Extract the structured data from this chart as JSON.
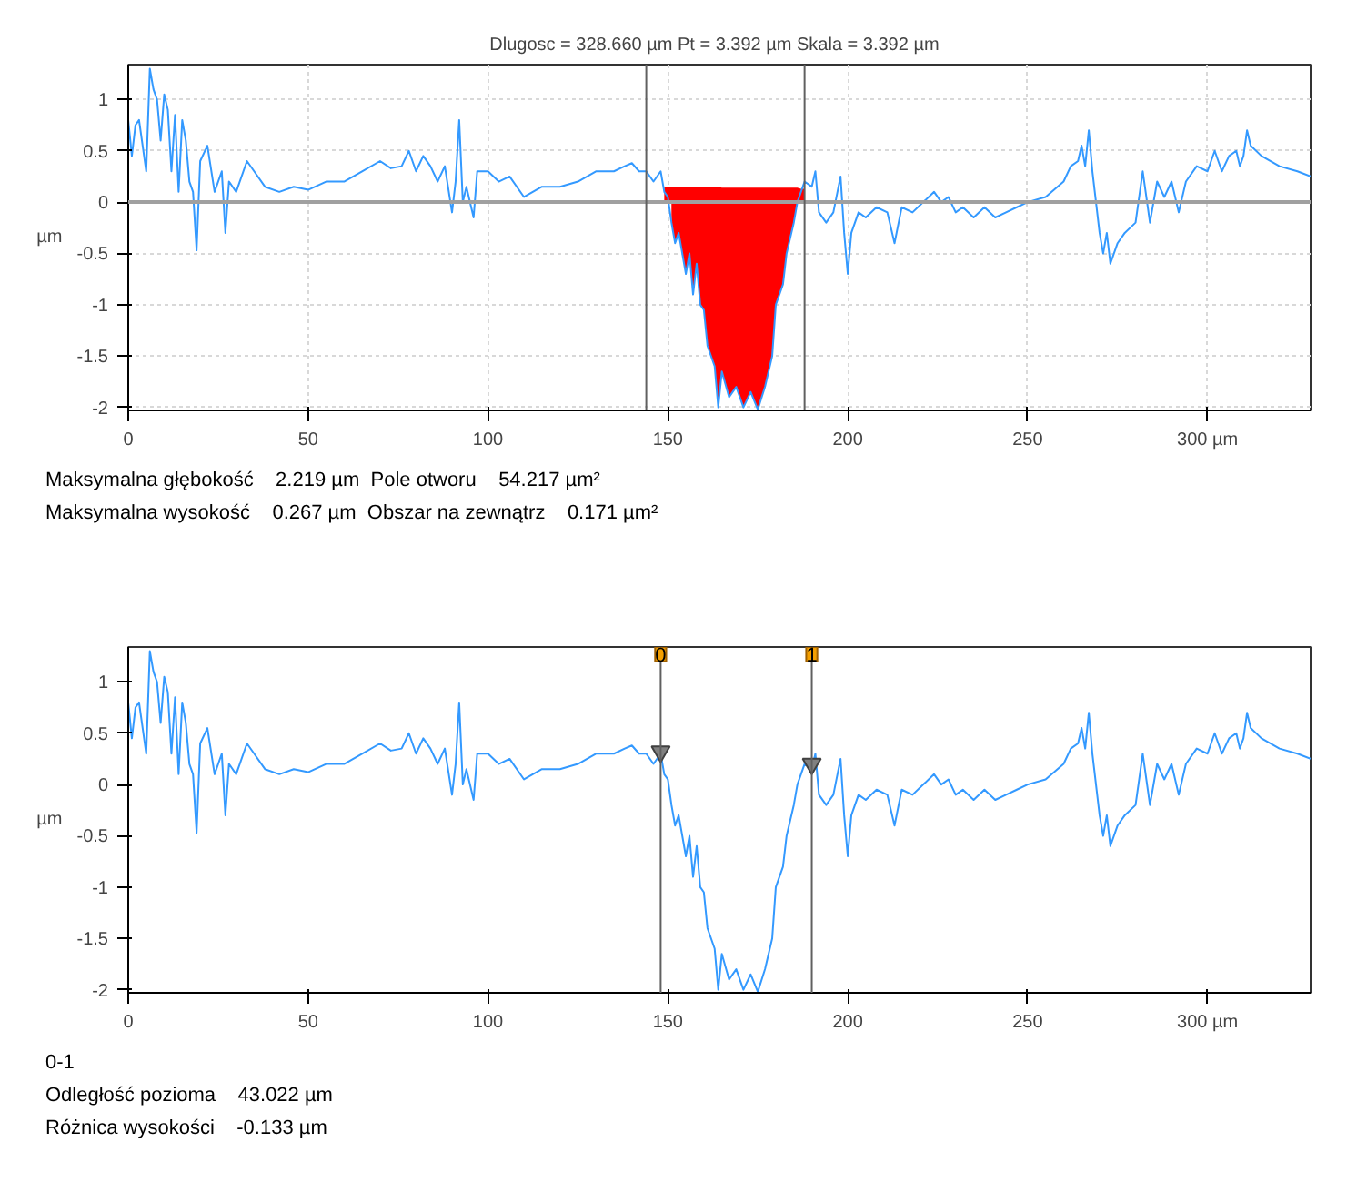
{
  "chart_data": [
    {
      "type": "line",
      "title": "Dlugosc = 328.660 µm  Pt = 3.392 µm  Skala = 3.392 µm",
      "ylabel": "µm",
      "xlim": [
        0,
        328.66
      ],
      "ylim": [
        -2.03,
        1.34
      ],
      "xticks": [
        0,
        50,
        100,
        150,
        200,
        250,
        {
          "value": 300,
          "label": "300 µm"
        }
      ],
      "yticks": [
        -2,
        -1.5,
        -1,
        -0.5,
        0,
        0.5,
        1
      ],
      "grid": true,
      "series": [
        {
          "color": "#3399ff",
          "x": [
            0,
            1,
            2,
            3,
            4,
            5,
            6,
            7,
            8,
            9,
            10,
            11,
            12,
            13,
            14,
            15,
            16,
            17,
            18,
            19,
            20,
            22,
            24,
            26,
            27,
            28,
            30,
            33,
            35,
            38,
            42,
            46,
            50,
            55,
            60,
            65,
            70,
            73,
            76,
            78,
            80,
            82,
            84,
            86,
            88,
            90,
            91,
            92,
            93,
            94,
            96,
            97,
            100,
            103,
            106,
            110,
            115,
            120,
            125,
            130,
            135,
            138,
            140,
            142,
            144,
            146,
            148,
            149,
            150,
            151,
            152,
            153,
            155,
            156,
            157,
            158,
            159,
            160,
            161,
            163,
            164,
            165,
            167,
            169,
            171,
            173,
            175,
            177,
            179,
            180,
            182,
            183,
            185,
            186,
            187,
            188,
            190,
            191,
            192,
            194,
            196,
            198,
            199,
            200,
            201,
            203,
            205,
            208,
            211,
            213,
            215,
            218,
            221,
            224,
            226,
            228,
            230,
            232,
            235,
            238,
            241,
            244,
            247,
            250,
            255,
            260,
            262,
            264,
            265,
            266,
            267,
            268,
            269,
            270,
            271,
            272,
            273,
            275,
            277,
            280,
            282,
            284,
            286,
            288,
            290,
            292,
            294,
            297,
            300,
            302,
            304,
            306,
            308,
            309,
            310,
            311,
            312,
            315,
            320,
            325,
            328.66
          ],
          "values": [
            0.8,
            0.45,
            0.75,
            0.8,
            0.55,
            0.3,
            1.3,
            1.1,
            1.0,
            0.6,
            1.05,
            0.9,
            0.3,
            0.85,
            0.1,
            0.8,
            0.6,
            0.2,
            0.1,
            -0.47,
            0.4,
            0.55,
            0.1,
            0.3,
            -0.3,
            0.2,
            0.1,
            0.4,
            0.3,
            0.15,
            0.1,
            0.15,
            0.12,
            0.2,
            0.2,
            0.3,
            0.4,
            0.33,
            0.35,
            0.5,
            0.3,
            0.45,
            0.35,
            0.2,
            0.35,
            -0.1,
            0.2,
            0.8,
            0.0,
            0.15,
            -0.15,
            0.3,
            0.3,
            0.2,
            0.25,
            0.05,
            0.15,
            0.15,
            0.2,
            0.3,
            0.3,
            0.35,
            0.38,
            0.3,
            0.3,
            0.2,
            0.3,
            0.1,
            0.05,
            -0.2,
            -0.4,
            -0.3,
            -0.7,
            -0.5,
            -0.9,
            -0.6,
            -1.0,
            -1.05,
            -1.4,
            -1.6,
            -2.0,
            -1.65,
            -1.9,
            -1.8,
            -2.0,
            -1.85,
            -2.02,
            -1.8,
            -1.5,
            -1.0,
            -0.8,
            -0.5,
            -0.2,
            0.0,
            0.1,
            0.2,
            0.15,
            0.3,
            -0.1,
            -0.2,
            -0.1,
            0.25,
            -0.3,
            -0.7,
            -0.3,
            -0.1,
            -0.15,
            -0.05,
            -0.1,
            -0.4,
            -0.05,
            -0.1,
            0.0,
            0.1,
            0.0,
            0.05,
            -0.1,
            -0.05,
            -0.15,
            -0.05,
            -0.15,
            -0.1,
            -0.05,
            0.0,
            0.05,
            0.2,
            0.35,
            0.4,
            0.55,
            0.35,
            0.7,
            0.3,
            0.0,
            -0.3,
            -0.5,
            -0.3,
            -0.6,
            -0.4,
            -0.3,
            -0.2,
            0.3,
            -0.2,
            0.2,
            0.05,
            0.2,
            -0.1,
            0.2,
            0.35,
            0.3,
            0.5,
            0.3,
            0.45,
            0.5,
            0.35,
            0.45,
            0.7,
            0.55,
            0.45,
            0.35,
            0.3,
            0.25
          ]
        },
        {
          "type": "area",
          "color": "#ff0000",
          "x": [
            151,
            152,
            153,
            155,
            156,
            157,
            158,
            159,
            160,
            161,
            163,
            164,
            165,
            167,
            169,
            171,
            173,
            175,
            177,
            179,
            180,
            182,
            183,
            185,
            186
          ],
          "values": [
            -0.2,
            -0.4,
            -0.3,
            -0.7,
            -0.5,
            -0.9,
            -0.6,
            -1.0,
            -1.05,
            -1.4,
            -1.6,
            -2.0,
            -1.65,
            -1.9,
            -1.8,
            -2.0,
            -1.85,
            -2.02,
            -1.8,
            -1.5,
            -1.0,
            -0.8,
            -0.5,
            -0.2,
            0.0
          ]
        },
        {
          "type": "area",
          "color": "#ff0000",
          "x": [
            149,
            150,
            151,
            152,
            153,
            155,
            156,
            157,
            158,
            159,
            160,
            161,
            163,
            164,
            165,
            167,
            169,
            171,
            173,
            175,
            177,
            179,
            180,
            182,
            183,
            185,
            186,
            187,
            188
          ],
          "values": [
            0.15,
            0.15,
            0.15,
            0.15,
            0.15,
            0.15,
            0.15,
            0.15,
            0.15,
            0.15,
            0.15,
            0.15,
            0.15,
            0.15,
            0.14,
            0.14,
            0.14,
            0.14,
            0.14,
            0.14,
            0.14,
            0.14,
            0.14,
            0.14,
            0.14,
            0.14,
            0.14,
            0.13,
            0.13
          ]
        }
      ],
      "ref_lines": [
        {
          "axis": "y",
          "value": 0,
          "color": "#a0a0a0"
        },
        {
          "axis": "x",
          "value": 144,
          "color": "#606060"
        },
        {
          "axis": "x",
          "value": 188,
          "color": "#606060"
        }
      ],
      "annotations": [
        "Maksymalna głębokość    2.219 µm  Pole otworu    54.217 µm²",
        "Maksymalna wysokość    0.267 µm  Obszar na zewnątrz    0.171 µm²"
      ]
    },
    {
      "type": "line",
      "ylabel": "µm",
      "xlim": [
        0,
        328.66
      ],
      "ylim": [
        -2.03,
        1.34
      ],
      "xticks": [
        0,
        50,
        100,
        150,
        200,
        250,
        {
          "value": 300,
          "label": "300 µm"
        }
      ],
      "yticks": [
        -2,
        -1.5,
        -1,
        -0.5,
        0,
        0.5,
        1
      ],
      "series": [
        {
          "color": "#3399ff",
          "x": [
            0,
            1,
            2,
            3,
            4,
            5,
            6,
            7,
            8,
            9,
            10,
            11,
            12,
            13,
            14,
            15,
            16,
            17,
            18,
            19,
            20,
            22,
            24,
            26,
            27,
            28,
            30,
            33,
            35,
            38,
            42,
            46,
            50,
            55,
            60,
            65,
            70,
            73,
            76,
            78,
            80,
            82,
            84,
            86,
            88,
            90,
            91,
            92,
            93,
            94,
            96,
            97,
            100,
            103,
            106,
            110,
            115,
            120,
            125,
            130,
            135,
            138,
            140,
            142,
            144,
            146,
            148,
            149,
            150,
            151,
            152,
            153,
            155,
            156,
            157,
            158,
            159,
            160,
            161,
            163,
            164,
            165,
            167,
            169,
            171,
            173,
            175,
            177,
            179,
            180,
            182,
            183,
            185,
            186,
            187,
            188,
            190,
            191,
            192,
            194,
            196,
            198,
            199,
            200,
            201,
            203,
            205,
            208,
            211,
            213,
            215,
            218,
            221,
            224,
            226,
            228,
            230,
            232,
            235,
            238,
            241,
            244,
            247,
            250,
            255,
            260,
            262,
            264,
            265,
            266,
            267,
            268,
            269,
            270,
            271,
            272,
            273,
            275,
            277,
            280,
            282,
            284,
            286,
            288,
            290,
            292,
            294,
            297,
            300,
            302,
            304,
            306,
            308,
            309,
            310,
            311,
            312,
            315,
            320,
            325,
            328.66
          ],
          "values": [
            0.8,
            0.45,
            0.75,
            0.8,
            0.55,
            0.3,
            1.3,
            1.1,
            1.0,
            0.6,
            1.05,
            0.9,
            0.3,
            0.85,
            0.1,
            0.8,
            0.6,
            0.2,
            0.1,
            -0.47,
            0.4,
            0.55,
            0.1,
            0.3,
            -0.3,
            0.2,
            0.1,
            0.4,
            0.3,
            0.15,
            0.1,
            0.15,
            0.12,
            0.2,
            0.2,
            0.3,
            0.4,
            0.33,
            0.35,
            0.5,
            0.3,
            0.45,
            0.35,
            0.2,
            0.35,
            -0.1,
            0.2,
            0.8,
            0.0,
            0.15,
            -0.15,
            0.3,
            0.3,
            0.2,
            0.25,
            0.05,
            0.15,
            0.15,
            0.2,
            0.3,
            0.3,
            0.35,
            0.38,
            0.3,
            0.3,
            0.2,
            0.3,
            0.1,
            0.05,
            -0.2,
            -0.4,
            -0.3,
            -0.7,
            -0.5,
            -0.9,
            -0.6,
            -1.0,
            -1.05,
            -1.4,
            -1.6,
            -2.0,
            -1.65,
            -1.9,
            -1.8,
            -2.0,
            -1.85,
            -2.02,
            -1.8,
            -1.5,
            -1.0,
            -0.8,
            -0.5,
            -0.2,
            0.0,
            0.1,
            0.2,
            0.15,
            0.3,
            -0.1,
            -0.2,
            -0.1,
            0.25,
            -0.3,
            -0.7,
            -0.3,
            -0.1,
            -0.15,
            -0.05,
            -0.1,
            -0.4,
            -0.05,
            -0.1,
            0.0,
            0.1,
            0.0,
            0.05,
            -0.1,
            -0.05,
            -0.15,
            -0.05,
            -0.15,
            -0.1,
            -0.05,
            0.0,
            0.05,
            0.2,
            0.35,
            0.4,
            0.55,
            0.35,
            0.7,
            0.3,
            0.0,
            -0.3,
            -0.5,
            -0.3,
            -0.6,
            -0.4,
            -0.3,
            -0.2,
            0.3,
            -0.2,
            0.2,
            0.05,
            0.2,
            -0.1,
            0.2,
            0.35,
            0.3,
            0.5,
            0.3,
            0.45,
            0.5,
            0.35,
            0.45,
            0.7,
            0.55,
            0.45,
            0.35,
            0.3,
            0.25
          ]
        },
        {
          "type": "scatter",
          "color": "#808080",
          "marker": "triangle",
          "x": [
            148,
            190
          ],
          "values": [
            0.32,
            0.2
          ]
        }
      ],
      "ref_lines": [
        {
          "axis": "x",
          "value": 148,
          "color": "#606060"
        },
        {
          "axis": "x",
          "value": 190,
          "color": "#606060"
        }
      ],
      "annotations": [
        {
          "text": "0",
          "x": 148,
          "y": 1.34
        },
        {
          "text": "1",
          "x": 190,
          "y": 1.34
        },
        "0-1",
        "Odległość pozioma    43.022 µm",
        "Różnica wysokości    -0.133 µm"
      ]
    }
  ]
}
